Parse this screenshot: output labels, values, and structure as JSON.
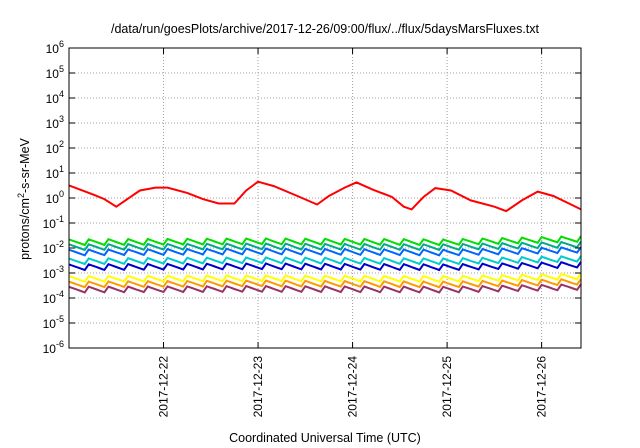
{
  "chart_data": {
    "type": "line",
    "title": "/data/run/goesPlots/archive/2017-12-26/09:00/flux/../flux/5daysMarsFluxes.txt",
    "xlabel": "Coordinated Universal Time (UTC)",
    "ylabel": {
      "base": "protons/cm",
      "sup": "2",
      "rest": "-s-sr-MeV"
    },
    "yscale": "log",
    "ylim": [
      1e-06,
      1000000.0
    ],
    "xlim": [
      "2017-12-21 00:00",
      "2017-12-26 10:00"
    ],
    "y_ticks": [
      {
        "value": 1e-06,
        "exp": "-6"
      },
      {
        "value": 1e-05,
        "exp": "-5"
      },
      {
        "value": 0.0001,
        "exp": "-4"
      },
      {
        "value": 0.001,
        "exp": "-3"
      },
      {
        "value": 0.01,
        "exp": "-2"
      },
      {
        "value": 0.1,
        "exp": "-1"
      },
      {
        "value": 1,
        "exp": "0"
      },
      {
        "value": 10,
        "exp": "1"
      },
      {
        "value": 100,
        "exp": "2"
      },
      {
        "value": 1000,
        "exp": "3"
      },
      {
        "value": 10000,
        "exp": "4"
      },
      {
        "value": 100000,
        "exp": "5"
      },
      {
        "value": 1000000,
        "exp": "6"
      }
    ],
    "x_ticks": [
      "2017-12-22",
      "2017-12-23",
      "2017-12-24",
      "2017-12-25",
      "2017-12-26"
    ],
    "grid": true,
    "legend": "none",
    "series_generation": {
      "start": "2017-12-21 00:00",
      "end": "2017-12-26 10:00",
      "sample_hours": 1,
      "sawtooth_period_hours": 5,
      "sawtooth_decay_decades": 0.28
    },
    "series": [
      {
        "color": "#ff0000",
        "keypoints": [
          [
            "2017-12-21 00:00",
            3.2
          ],
          [
            "2017-12-21 06:00",
            1.4
          ],
          [
            "2017-12-21 09:00",
            0.9
          ],
          [
            "2017-12-21 12:00",
            0.45
          ],
          [
            "2017-12-21 15:00",
            0.95
          ],
          [
            "2017-12-21 18:00",
            2.0
          ],
          [
            "2017-12-21 22:00",
            2.6
          ],
          [
            "2017-12-22 01:00",
            2.6
          ],
          [
            "2017-12-22 06:00",
            1.6
          ],
          [
            "2017-12-22 10:00",
            0.9
          ],
          [
            "2017-12-22 14:00",
            0.6
          ],
          [
            "2017-12-22 18:00",
            0.6
          ],
          [
            "2017-12-22 21:00",
            2.0
          ],
          [
            "2017-12-23 00:00",
            4.5
          ],
          [
            "2017-12-23 04:00",
            3.0
          ],
          [
            "2017-12-23 10:00",
            1.2
          ],
          [
            "2017-12-23 15:00",
            0.55
          ],
          [
            "2017-12-23 18:00",
            1.2
          ],
          [
            "2017-12-23 22:00",
            2.6
          ],
          [
            "2017-12-24 01:00",
            4.2
          ],
          [
            "2017-12-24 05:00",
            2.2
          ],
          [
            "2017-12-24 10:00",
            1.1
          ],
          [
            "2017-12-24 13:00",
            0.45
          ],
          [
            "2017-12-24 15:00",
            0.35
          ],
          [
            "2017-12-24 18:00",
            1.1
          ],
          [
            "2017-12-24 21:00",
            2.5
          ],
          [
            "2017-12-25 01:00",
            2.0
          ],
          [
            "2017-12-25 06:00",
            0.8
          ],
          [
            "2017-12-25 12:00",
            0.45
          ],
          [
            "2017-12-25 15:00",
            0.3
          ],
          [
            "2017-12-25 19:00",
            0.8
          ],
          [
            "2017-12-25 23:00",
            1.8
          ],
          [
            "2017-12-26 03:00",
            1.2
          ],
          [
            "2017-12-26 08:00",
            0.5
          ],
          [
            "2017-12-26 10:00",
            0.35
          ]
        ]
      },
      {
        "color": "#00dd00",
        "keypoints": [
          [
            "2017-12-21 00:00",
            0.022
          ],
          [
            "2017-12-23 00:00",
            0.024
          ],
          [
            "2017-12-25 00:00",
            0.022
          ],
          [
            "2017-12-26 10:00",
            0.03
          ]
        ]
      },
      {
        "color": "#00aa88",
        "keypoints": [
          [
            "2017-12-21 00:00",
            0.014
          ],
          [
            "2017-12-23 00:00",
            0.015
          ],
          [
            "2017-12-25 00:00",
            0.014
          ],
          [
            "2017-12-26 10:00",
            0.018
          ]
        ]
      },
      {
        "color": "#0066ff",
        "keypoints": [
          [
            "2017-12-21 00:00",
            0.0085
          ],
          [
            "2017-12-23 00:00",
            0.0095
          ],
          [
            "2017-12-25 00:00",
            0.0085
          ],
          [
            "2017-12-26 10:00",
            0.011
          ]
        ]
      },
      {
        "color": "#00cccc",
        "keypoints": [
          [
            "2017-12-21 00:00",
            0.0038
          ],
          [
            "2017-12-23 00:00",
            0.0042
          ],
          [
            "2017-12-25 00:00",
            0.0038
          ],
          [
            "2017-12-26 10:00",
            0.0048
          ]
        ]
      },
      {
        "color": "#0000cc",
        "keypoints": [
          [
            "2017-12-21 00:00",
            0.0022
          ],
          [
            "2017-12-23 00:00",
            0.0024
          ],
          [
            "2017-12-25 00:00",
            0.0022
          ],
          [
            "2017-12-26 10:00",
            0.0028
          ]
        ]
      },
      {
        "color": "#ffff00",
        "keypoints": [
          [
            "2017-12-21 00:00",
            0.00075
          ],
          [
            "2017-12-23 00:00",
            0.0008
          ],
          [
            "2017-12-25 00:00",
            0.00075
          ],
          [
            "2017-12-26 10:00",
            0.00095
          ]
        ]
      },
      {
        "color": "#ff9900",
        "keypoints": [
          [
            "2017-12-21 00:00",
            0.00045
          ],
          [
            "2017-12-23 00:00",
            0.0005
          ],
          [
            "2017-12-25 00:00",
            0.00045
          ],
          [
            "2017-12-26 10:00",
            0.00058
          ]
        ]
      },
      {
        "color": "#993366",
        "keypoints": [
          [
            "2017-12-21 00:00",
            0.00028
          ],
          [
            "2017-12-23 00:00",
            0.0003
          ],
          [
            "2017-12-25 00:00",
            0.00028
          ],
          [
            "2017-12-26 10:00",
            0.00036
          ]
        ]
      }
    ]
  }
}
